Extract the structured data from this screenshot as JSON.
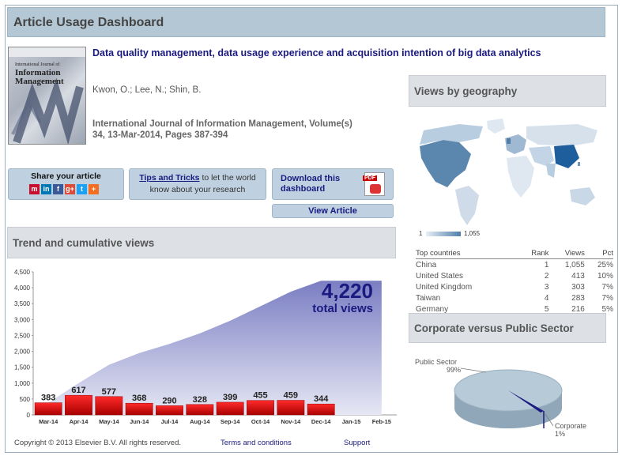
{
  "dashboard": {
    "title": "Article Usage Dashboard"
  },
  "cover": {
    "journal_top": "International Journal of",
    "journal_name_1": "Information",
    "journal_name_2": "Management"
  },
  "article": {
    "title": "Data quality management, data usage experience and acquisition intention of big data analytics",
    "authors": "Kwon, O.; Lee, N.; Shin, B.",
    "journal_line1": "International Journal of Information Management, Volume(s)",
    "journal_line2": "34, 13-Mar-2014, Pages 387-394"
  },
  "share": {
    "label": "Share your article",
    "icons": [
      "mendeley-icon",
      "linkedin-icon",
      "facebook-icon",
      "googleplus-icon",
      "twitter-icon",
      "more-icon"
    ]
  },
  "tips": {
    "link": "Tips and Tricks",
    "rest1": " to let the world",
    "rest2": "know about your research"
  },
  "download": {
    "line1": "Download this",
    "line2": "dashboard",
    "pdf_label": "PDF"
  },
  "view_article": "View Article",
  "trend": {
    "header": "Trend and cumulative views",
    "total_number": "4,220",
    "total_label": "total views"
  },
  "chart_data": {
    "type": "bar",
    "categories": [
      "Mar-14",
      "Apr-14",
      "May-14",
      "Jun-14",
      "Jul-14",
      "Aug-14",
      "Sep-14",
      "Oct-14",
      "Nov-14",
      "Dec-14",
      "Jan-15",
      "Feb-15"
    ],
    "series": [
      {
        "values": [
          383,
          617,
          577,
          368,
          290,
          328,
          399,
          455,
          459,
          344,
          null,
          null
        ]
      }
    ],
    "cumulative": [
      383,
      1000,
      1577,
      1945,
      2235,
      2563,
      2962,
      3417,
      3876,
      4220,
      4220,
      4220
    ],
    "y_ticks": [
      "0",
      "500",
      "1,000",
      "1,500",
      "2,000",
      "2,500",
      "3,000",
      "3,500",
      "4,000",
      "4,500"
    ],
    "ylim": [
      0,
      4500
    ],
    "bar_color": "#d40000",
    "area_color": "#8a8ecb"
  },
  "geo": {
    "header": "Views by geography",
    "legend_min": "1",
    "legend_max": "1,055",
    "table_headers": [
      "Top countries",
      "Rank",
      "Views",
      "Pct"
    ],
    "countries": [
      {
        "name": "China",
        "rank": "1",
        "views": "1,055",
        "pct": "25%"
      },
      {
        "name": "United States",
        "rank": "2",
        "views": "413",
        "pct": "10%"
      },
      {
        "name": "United Kingdom",
        "rank": "3",
        "views": "303",
        "pct": "7%"
      },
      {
        "name": "Taiwan",
        "rank": "4",
        "views": "283",
        "pct": "7%"
      },
      {
        "name": "Germany",
        "rank": "5",
        "views": "216",
        "pct": "5%"
      }
    ]
  },
  "corp": {
    "header": "Corporate versus Public Sector",
    "public_label": "Public Sector",
    "public_pct": "99%",
    "corp_label": "Corporate",
    "corp_pct": "1%"
  },
  "footer": {
    "copyright": "Copyright © 2013 Elsevier B.V. All rights reserved.",
    "terms": "Terms and conditions",
    "support": "Support"
  }
}
